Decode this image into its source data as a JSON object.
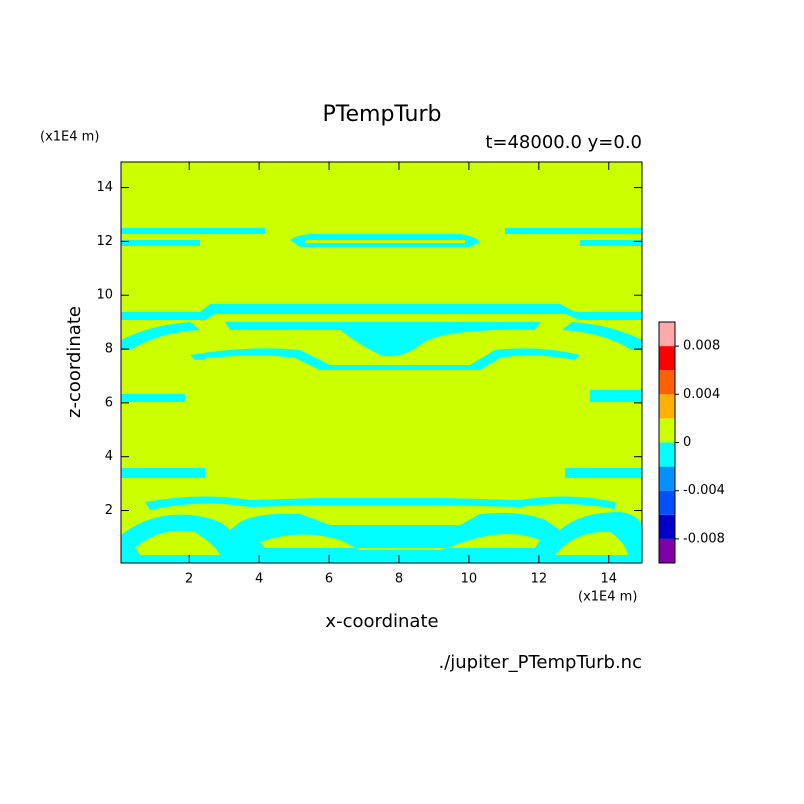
{
  "chart_data": {
    "type": "contour",
    "title": "PTempTurb",
    "subtitle": "t=48000.0 y=0.0",
    "x_units": "(x1E4 m)",
    "y_units": "(x1E4 m)",
    "xlabel": "x-coordinate",
    "ylabel": "z-coordinate",
    "source": "./jupiter_PTempTurb.nc",
    "xlim": [
      0.05,
      14.95
    ],
    "ylim": [
      0.05,
      14.95
    ],
    "xticks": [
      2,
      4,
      6,
      8,
      10,
      12,
      14
    ],
    "yticks": [
      2,
      4,
      6,
      8,
      10,
      12,
      14
    ],
    "levels": [
      -0.01,
      -0.008,
      -0.006,
      -0.004,
      -0.002,
      0,
      0.002,
      0.004,
      0.006,
      0.008,
      0.01
    ],
    "colors": [
      "#8000a8",
      "#0000c8",
      "#0050ff",
      "#0090ff",
      "#00ffff",
      "#ccff00",
      "#ffb000",
      "#ff6000",
      "#ff0000",
      "#ffaaaa"
    ],
    "colorbar_ticks": [
      -0.008,
      -0.004,
      0,
      0.004,
      0.008
    ]
  }
}
